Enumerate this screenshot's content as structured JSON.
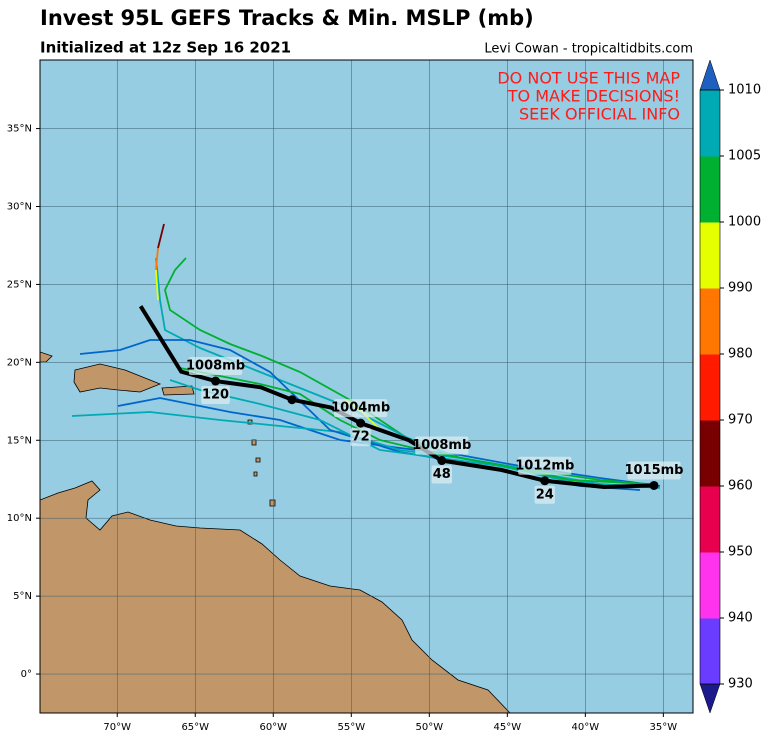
{
  "header": {
    "title": "Invest 95L GEFS Tracks & Min. MSLP (mb)",
    "subtitle": "Initialized at 12z Sep 16 2021",
    "credit": "Levi Cowan - tropicaltidbits.com"
  },
  "map": {
    "warning": [
      "DO NOT USE THIS MAP",
      "TO MAKE DECISIONS!",
      "SEEK OFFICIAL INFO"
    ],
    "lonlim": [
      -74.95,
      -33.1
    ],
    "latlim": [
      -2.5,
      39.4
    ],
    "lon_ticks": [
      {
        "value": -70,
        "label": "70°W"
      },
      {
        "value": -65,
        "label": "65°W"
      },
      {
        "value": -60,
        "label": "60°W"
      },
      {
        "value": -55,
        "label": "55°W"
      },
      {
        "value": -50,
        "label": "50°W"
      },
      {
        "value": -45,
        "label": "45°W"
      },
      {
        "value": -40,
        "label": "40°W"
      },
      {
        "value": -35,
        "label": "35°W"
      }
    ],
    "lat_ticks": [
      {
        "value": 0,
        "label": "0°"
      },
      {
        "value": 5,
        "label": "5°N"
      },
      {
        "value": 10,
        "label": "10°N"
      },
      {
        "value": 15,
        "label": "15°N"
      },
      {
        "value": 20,
        "label": "20°N"
      },
      {
        "value": 25,
        "label": "25°N"
      },
      {
        "value": 30,
        "label": "30°N"
      },
      {
        "value": 35,
        "label": "35°N"
      }
    ],
    "mean_track": {
      "lon": [
        -35.6,
        -38.8,
        -42.6,
        -45.4,
        -49.2,
        -51.3,
        -54.4,
        -56.3,
        -58.8,
        -60.8,
        -63.7,
        -65.9,
        -68.5
      ],
      "lat": [
        12.1,
        12.0,
        12.4,
        13.1,
        13.7,
        15.0,
        16.1,
        17.1,
        17.6,
        18.4,
        18.8,
        19.4,
        23.6
      ],
      "dot": [
        true,
        false,
        true,
        false,
        true,
        false,
        true,
        false,
        true,
        false,
        true,
        false,
        false
      ],
      "pressure_labels": [
        "1015mb",
        null,
        "1012mb",
        null,
        "1008mb",
        null,
        "1004mb",
        null,
        null,
        null,
        "1008mb",
        null,
        null
      ],
      "hour_labels": [
        null,
        null,
        "24",
        null,
        "48",
        null,
        "72",
        null,
        null,
        null,
        "120",
        null,
        null
      ]
    },
    "colorbar": {
      "ticks": [
        930,
        940,
        950,
        960,
        970,
        980,
        990,
        1000,
        1005,
        1010
      ],
      "colors": [
        "#6a3cff",
        "#ff33ee",
        "#e8004e",
        "#780000",
        "#ff1a00",
        "#ff7700",
        "#e6ff00",
        "#00b030",
        "#00aab4"
      ],
      "under_color": "#1a1a8a",
      "over_color": "#1f5fbf"
    }
  }
}
